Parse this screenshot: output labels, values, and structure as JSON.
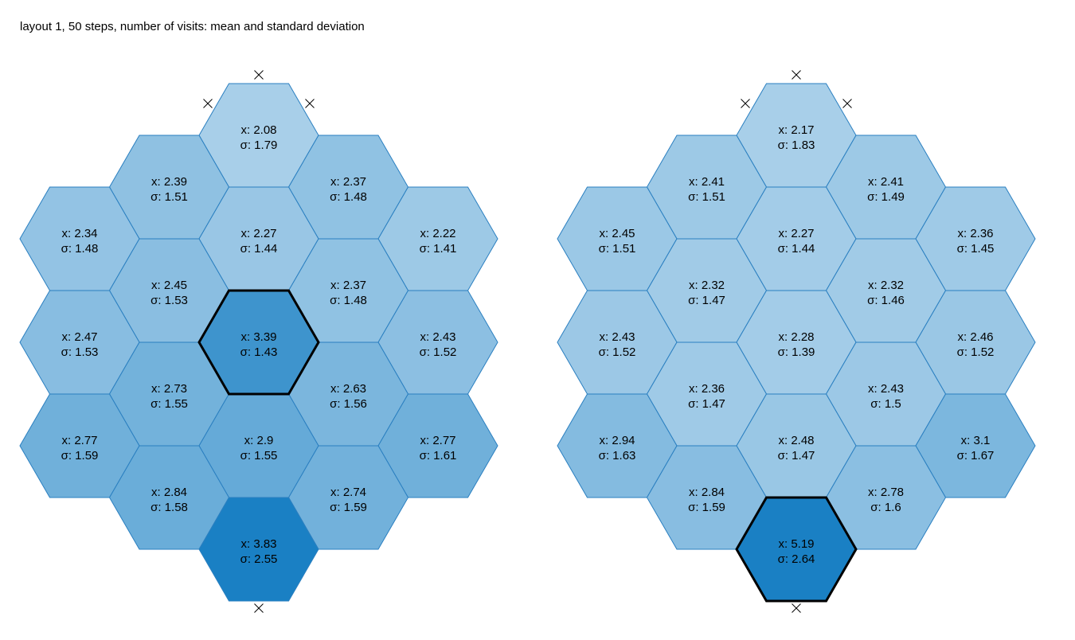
{
  "chart_data": {
    "type": "heatmap",
    "title": "layout 1, 50 steps, number of visits: mean and standard deviation",
    "mean_prefix": "x: ",
    "std_prefix": "σ: ",
    "marker_symbol": "×",
    "highlight_color": "#000000",
    "cell_color_low": "#a8cfe9",
    "cell_color_high": "#1a80c4",
    "boards": [
      {
        "cells": [
          {
            "q": 0,
            "r": 0,
            "mean": "2.08",
            "std": "1.79"
          },
          {
            "q": -1,
            "r": 1,
            "mean": "2.39",
            "std": "1.51"
          },
          {
            "q": 1,
            "r": 1,
            "mean": "2.37",
            "std": "1.48"
          },
          {
            "q": -2,
            "r": 2,
            "mean": "2.34",
            "std": "1.48"
          },
          {
            "q": 0,
            "r": 2,
            "mean": "2.27",
            "std": "1.44"
          },
          {
            "q": 2,
            "r": 2,
            "mean": "2.22",
            "std": "1.41"
          },
          {
            "q": -1,
            "r": 3,
            "mean": "2.45",
            "std": "1.53"
          },
          {
            "q": 1,
            "r": 3,
            "mean": "2.37",
            "std": "1.48"
          },
          {
            "q": -2,
            "r": 4,
            "mean": "2.47",
            "std": "1.53"
          },
          {
            "q": 0,
            "r": 4,
            "mean": "3.39",
            "std": "1.43",
            "highlight": true
          },
          {
            "q": 2,
            "r": 4,
            "mean": "2.43",
            "std": "1.52"
          },
          {
            "q": -1,
            "r": 5,
            "mean": "2.73",
            "std": "1.55"
          },
          {
            "q": 1,
            "r": 5,
            "mean": "2.63",
            "std": "1.56"
          },
          {
            "q": -2,
            "r": 6,
            "mean": "2.77",
            "std": "1.59"
          },
          {
            "q": 0,
            "r": 6,
            "mean": "2.9",
            "std": "1.55"
          },
          {
            "q": 2,
            "r": 6,
            "mean": "2.77",
            "std": "1.61"
          },
          {
            "q": -1,
            "r": 7,
            "mean": "2.84",
            "std": "1.58"
          },
          {
            "q": 1,
            "r": 7,
            "mean": "2.74",
            "std": "1.59"
          },
          {
            "q": 0,
            "r": 8,
            "mean": "3.83",
            "std": "2.55"
          }
        ],
        "markers": [
          "top",
          "top-left",
          "top-right",
          "bottom"
        ]
      },
      {
        "cells": [
          {
            "q": 0,
            "r": 0,
            "mean": "2.17",
            "std": "1.83"
          },
          {
            "q": -1,
            "r": 1,
            "mean": "2.41",
            "std": "1.51"
          },
          {
            "q": 1,
            "r": 1,
            "mean": "2.41",
            "std": "1.49"
          },
          {
            "q": -2,
            "r": 2,
            "mean": "2.45",
            "std": "1.51"
          },
          {
            "q": 0,
            "r": 2,
            "mean": "2.27",
            "std": "1.44"
          },
          {
            "q": 2,
            "r": 2,
            "mean": "2.36",
            "std": "1.45"
          },
          {
            "q": -1,
            "r": 3,
            "mean": "2.32",
            "std": "1.47"
          },
          {
            "q": 1,
            "r": 3,
            "mean": "2.32",
            "std": "1.46"
          },
          {
            "q": -2,
            "r": 4,
            "mean": "2.43",
            "std": "1.52"
          },
          {
            "q": 0,
            "r": 4,
            "mean": "2.28",
            "std": "1.39"
          },
          {
            "q": 2,
            "r": 4,
            "mean": "2.46",
            "std": "1.52"
          },
          {
            "q": -1,
            "r": 5,
            "mean": "2.36",
            "std": "1.47"
          },
          {
            "q": 1,
            "r": 5,
            "mean": "2.43",
            "std": "1.5"
          },
          {
            "q": -2,
            "r": 6,
            "mean": "2.94",
            "std": "1.63"
          },
          {
            "q": 0,
            "r": 6,
            "mean": "2.48",
            "std": "1.47"
          },
          {
            "q": 2,
            "r": 6,
            "mean": "3.1",
            "std": "1.67"
          },
          {
            "q": -1,
            "r": 7,
            "mean": "2.84",
            "std": "1.59"
          },
          {
            "q": 1,
            "r": 7,
            "mean": "2.78",
            "std": "1.6"
          },
          {
            "q": 0,
            "r": 8,
            "mean": "5.19",
            "std": "2.64",
            "highlight": true
          }
        ],
        "markers": [
          "top",
          "top-left",
          "top-right",
          "bottom"
        ]
      }
    ]
  }
}
